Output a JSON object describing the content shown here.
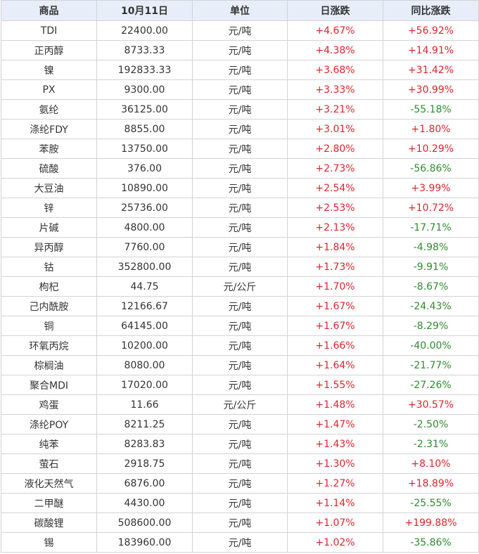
{
  "headers": [
    "商品",
    "10月11日",
    "单位",
    "日涨跌",
    "同比涨跌"
  ],
  "colors": {
    "up": "#e0252a",
    "down": "#2e8b2e",
    "header_bg": "#e7eef9"
  },
  "rows": [
    [
      "TDI",
      "22400.00",
      "元/吨",
      "+4.67%",
      "+56.92%"
    ],
    [
      "正丙醇",
      "8733.33",
      "元/吨",
      "+4.38%",
      "+14.91%"
    ],
    [
      "镍",
      "192833.33",
      "元/吨",
      "+3.68%",
      "+31.42%"
    ],
    [
      "PX",
      "9300.00",
      "元/吨",
      "+3.33%",
      "+30.99%"
    ],
    [
      "氨纶",
      "36125.00",
      "元/吨",
      "+3.21%",
      "-55.18%"
    ],
    [
      "涤纶FDY",
      "8855.00",
      "元/吨",
      "+3.01%",
      "+1.80%"
    ],
    [
      "苯胺",
      "13750.00",
      "元/吨",
      "+2.80%",
      "+10.29%"
    ],
    [
      "硫酸",
      "376.00",
      "元/吨",
      "+2.73%",
      "-56.86%"
    ],
    [
      "大豆油",
      "10890.00",
      "元/吨",
      "+2.54%",
      "+3.99%"
    ],
    [
      "锌",
      "25736.00",
      "元/吨",
      "+2.53%",
      "+10.72%"
    ],
    [
      "片碱",
      "4800.00",
      "元/吨",
      "+2.13%",
      "-17.71%"
    ],
    [
      "异丙醇",
      "7760.00",
      "元/吨",
      "+1.84%",
      "-4.98%"
    ],
    [
      "钴",
      "352800.00",
      "元/吨",
      "+1.73%",
      "-9.91%"
    ],
    [
      "枸杞",
      "44.75",
      "元/公斤",
      "+1.70%",
      "-8.67%"
    ],
    [
      "己内酰胺",
      "12166.67",
      "元/吨",
      "+1.67%",
      "-24.43%"
    ],
    [
      "铜",
      "64145.00",
      "元/吨",
      "+1.67%",
      "-8.29%"
    ],
    [
      "环氧丙烷",
      "10200.00",
      "元/吨",
      "+1.66%",
      "-40.00%"
    ],
    [
      "棕榈油",
      "8080.00",
      "元/吨",
      "+1.64%",
      "-21.77%"
    ],
    [
      "聚合MDI",
      "17020.00",
      "元/吨",
      "+1.55%",
      "-27.26%"
    ],
    [
      "鸡蛋",
      "11.66",
      "元/公斤",
      "+1.48%",
      "+30.57%"
    ],
    [
      "涤纶POY",
      "8211.25",
      "元/吨",
      "+1.47%",
      "-2.50%"
    ],
    [
      "纯苯",
      "8283.83",
      "元/吨",
      "+1.43%",
      "-2.31%"
    ],
    [
      "萤石",
      "2918.75",
      "元/吨",
      "+1.30%",
      "+8.10%"
    ],
    [
      "液化天然气",
      "6876.00",
      "元/吨",
      "+1.27%",
      "+18.89%"
    ],
    [
      "二甲醚",
      "4430.00",
      "元/吨",
      "+1.14%",
      "-25.55%"
    ],
    [
      "碳酸锂",
      "508600.00",
      "元/吨",
      "+1.07%",
      "+199.88%"
    ],
    [
      "锡",
      "183960.00",
      "元/吨",
      "+1.02%",
      "-35.86%"
    ]
  ]
}
